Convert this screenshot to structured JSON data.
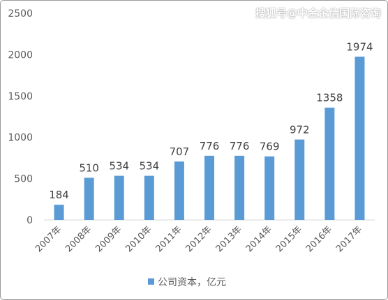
{
  "watermark": "搜狐号@中金企信国际咨询",
  "chart_data": {
    "type": "bar",
    "categories": [
      "2007年",
      "2008年",
      "2009年",
      "2010年",
      "2011年",
      "2012年",
      "2013年",
      "2014年",
      "2015年",
      "2016年",
      "2017年"
    ],
    "series": [
      {
        "name": "公司资本，亿元",
        "values": [
          184,
          510,
          534,
          534,
          707,
          776,
          776,
          769,
          972,
          1358,
          1974
        ]
      }
    ],
    "data_labels": [
      "184",
      "510",
      "534",
      "534",
      "707",
      "776",
      "776",
      "769",
      "972",
      "1358",
      "1974"
    ],
    "yticks": [
      "0",
      "500",
      "1000",
      "1500",
      "2000",
      "2500"
    ],
    "ylim": [
      0,
      2500
    ],
    "grid": false,
    "legend_position": "bottom",
    "bar_color": "#5b9bd5"
  }
}
